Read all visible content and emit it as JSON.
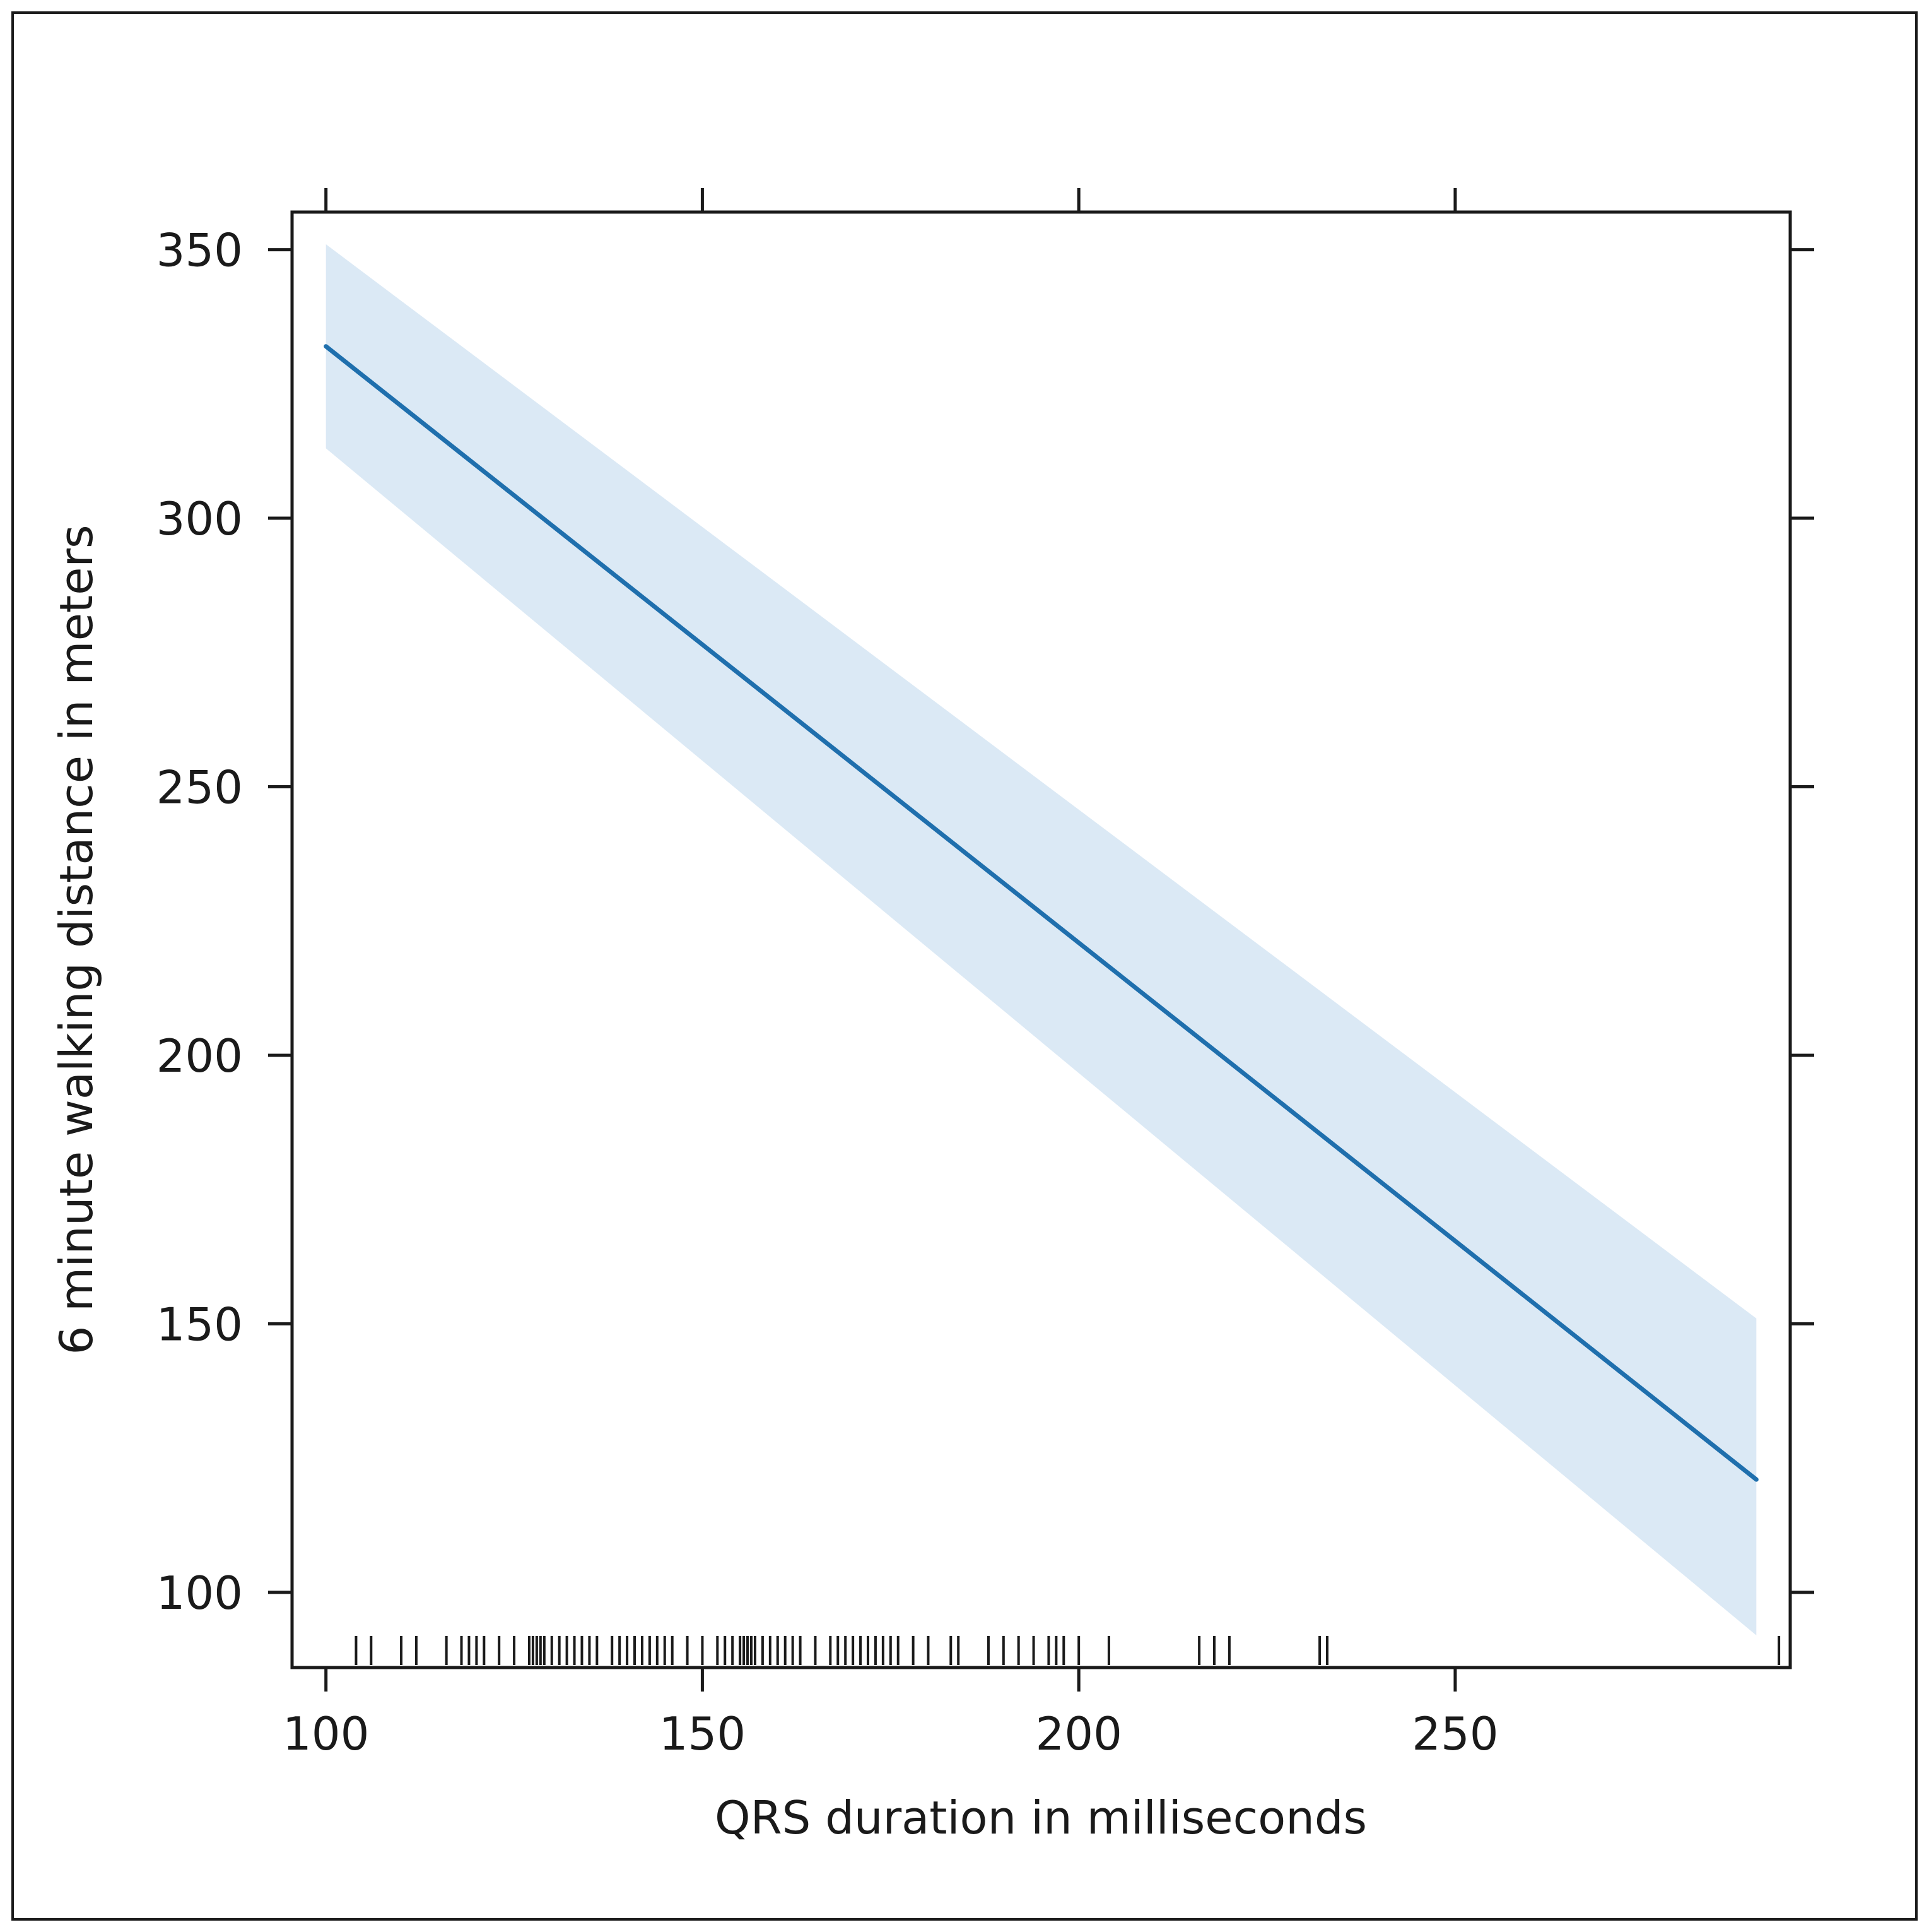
{
  "chart_data": {
    "type": "line",
    "title": "",
    "xlabel": "QRS duration in milliseconds",
    "ylabel": "6 minute walking distance in meters",
    "xlim": [
      95.5,
      294.5
    ],
    "ylim": [
      86,
      357
    ],
    "x_ticks": [
      100,
      150,
      200,
      250
    ],
    "x_tick_labels": [
      "100",
      "150",
      "200",
      "250"
    ],
    "y_ticks": [
      100,
      150,
      200,
      250,
      300,
      350
    ],
    "y_tick_labels": [
      "100",
      "150",
      "200",
      "250",
      "300",
      "350"
    ],
    "grid": false,
    "legend": "none",
    "series": [
      {
        "x": [
          100,
          290
        ],
        "y": [
          332,
          121
        ],
        "lower": [
          313,
          92
        ],
        "upper": [
          351,
          151
        ]
      }
    ],
    "rug_x": [
      104,
      106,
      110,
      112,
      116,
      118,
      119,
      120,
      121,
      123,
      125,
      127,
      127.5,
      128,
      128.5,
      129,
      130,
      131,
      132,
      133,
      134,
      135,
      136,
      138,
      139,
      140,
      141,
      142,
      143,
      144,
      145,
      146,
      148,
      150,
      152,
      153,
      154,
      155,
      155.5,
      156,
      156.5,
      157,
      158,
      159,
      160,
      161,
      162,
      163,
      165,
      167,
      168,
      169,
      170,
      171,
      172,
      173,
      174,
      175,
      176,
      178,
      180,
      183,
      184,
      188,
      190,
      192,
      194,
      196,
      197,
      198,
      200,
      204,
      216,
      218,
      220,
      232,
      233,
      293
    ],
    "colors": {
      "line": "#1f6fad",
      "band": "#dbe9f5",
      "axis": "#1a1a1a"
    }
  }
}
